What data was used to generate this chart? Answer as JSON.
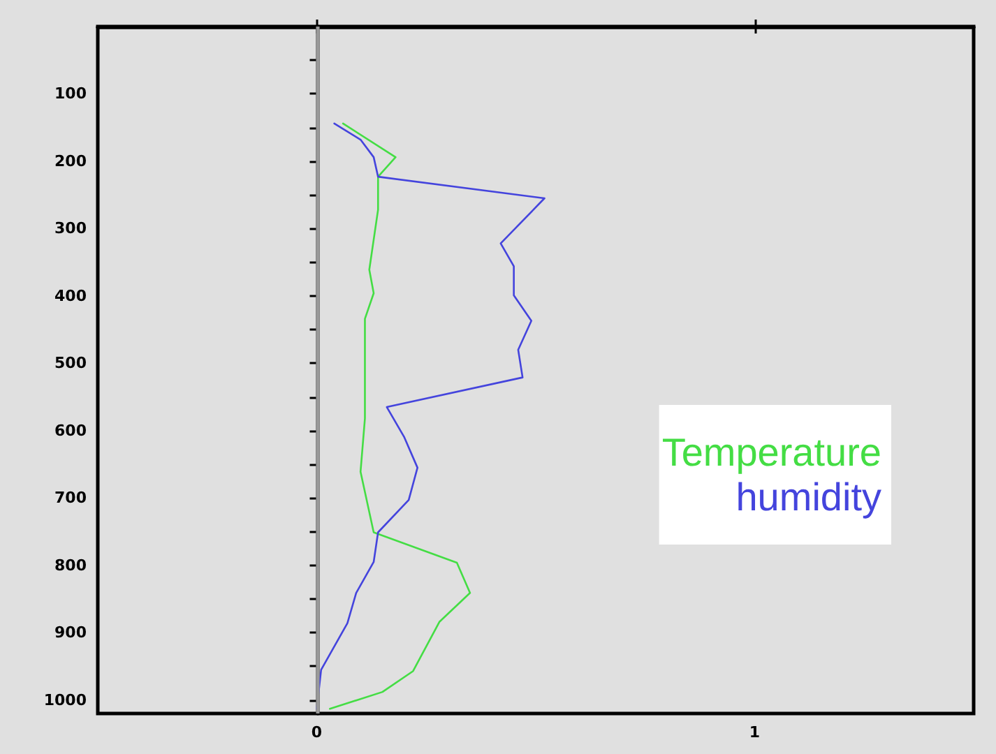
{
  "chart_data": {
    "type": "line",
    "orientation": "horizontal",
    "marker": "none",
    "grid": false,
    "legend": "right",
    "xlim": [
      -0.5,
      1.5
    ],
    "xticks": [
      0,
      1
    ],
    "ylim": [
      1020,
      0
    ],
    "yticks": [
      {
        "value": 50,
        "label": null
      },
      100,
      {
        "value": 150,
        "label": null
      },
      200,
      {
        "value": 250,
        "label": null
      },
      300,
      {
        "value": 350,
        "label": null
      },
      400,
      {
        "value": 450,
        "label": null
      },
      500,
      {
        "value": 550,
        "label": null
      },
      600,
      {
        "value": 650,
        "label": null
      },
      700,
      {
        "value": 750,
        "label": null
      },
      800,
      {
        "value": 850,
        "label": null
      },
      900,
      {
        "value": 950,
        "label": null
      },
      1000
    ],
    "ref_lines": [
      {
        "axis": "x",
        "value": 0,
        "color": "#999999"
      }
    ],
    "series": [
      {
        "name": "Temperature",
        "color": "#44dd44",
        "x": [
          144,
          194,
          223,
          272,
          361,
          396,
          434,
          582,
          661,
          751,
          796,
          841,
          884,
          957,
          988,
          1013
        ],
        "values": [
          0.06,
          0.18,
          0.14,
          0.14,
          0.12,
          0.13,
          0.11,
          0.11,
          0.1,
          0.13,
          0.32,
          0.35,
          0.28,
          0.22,
          0.15,
          0.03
        ]
      },
      {
        "name": "humidity",
        "color": "#4444dd",
        "x": [
          144,
          168,
          194,
          223,
          255,
          322,
          356,
          399,
          437,
          480,
          521,
          565,
          610,
          655,
          703,
          751,
          795,
          841,
          886,
          955,
          1013
        ],
        "values": [
          0.04,
          0.1,
          0.13,
          0.14,
          0.52,
          0.42,
          0.45,
          0.45,
          0.49,
          0.46,
          0.47,
          0.16,
          0.2,
          0.23,
          0.21,
          0.14,
          0.13,
          0.09,
          0.07,
          0.01,
          0.0
        ]
      }
    ]
  }
}
